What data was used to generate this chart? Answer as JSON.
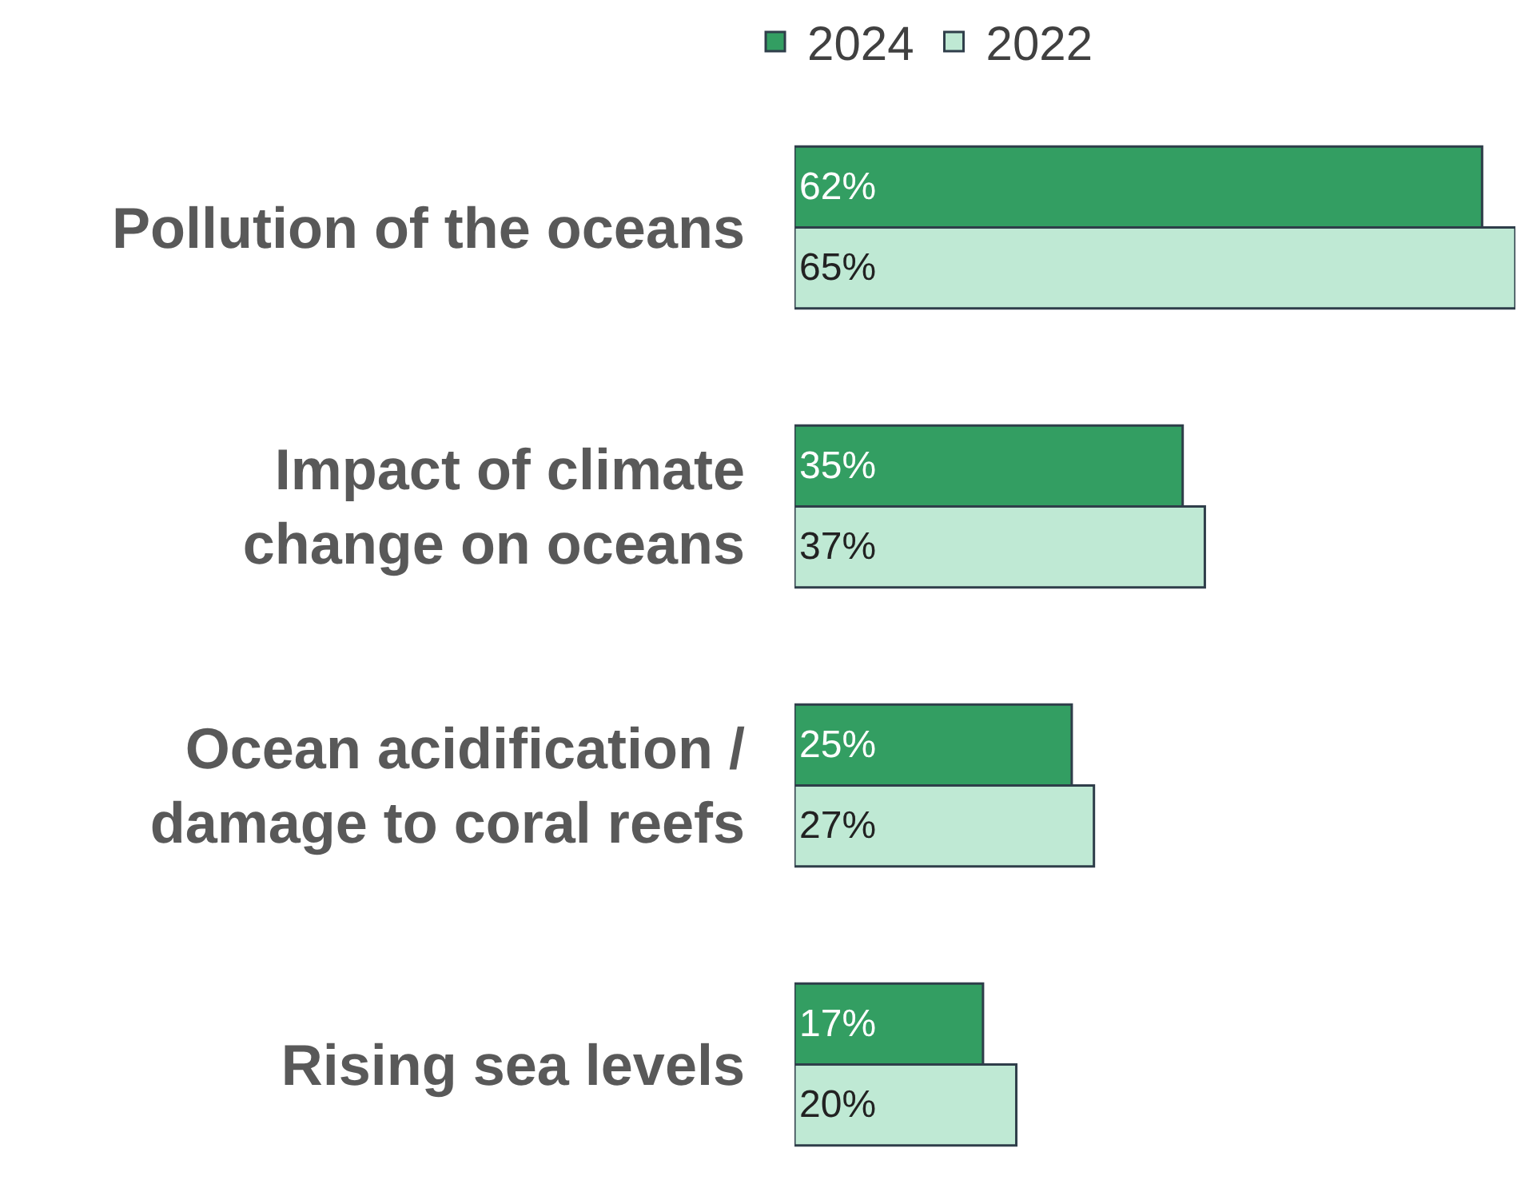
{
  "chart_data": {
    "type": "bar",
    "orientation": "horizontal",
    "legend": "top",
    "xlim": [
      0,
      65
    ],
    "tick_labels": "y",
    "categories": [
      "Pollution of the oceans",
      "Impact of climate change on oceans",
      "Ocean acidification / damage to coral reefs",
      "Rising sea levels"
    ],
    "series": [
      {
        "name": "2024",
        "color": "#339e62",
        "values": [
          62,
          35,
          25,
          17
        ],
        "value_labels": [
          "62%",
          "35%",
          "25%",
          "17%"
        ]
      },
      {
        "name": "2022",
        "color": "#bfe9d4",
        "values": [
          65,
          37,
          27,
          20
        ],
        "value_labels": [
          "65%",
          "37%",
          "27%",
          "20%"
        ]
      }
    ]
  }
}
